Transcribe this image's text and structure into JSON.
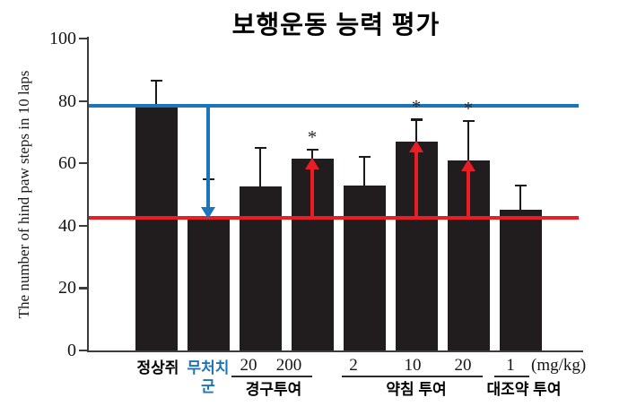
{
  "chart_data": {
    "type": "bar",
    "title": "보행운동 능력 평가",
    "ylabel": "The number of hind paw steps in 10 laps",
    "xlabel": "",
    "unit_label": "(mg/kg)",
    "ylim": [
      0,
      100
    ],
    "yticks": [
      0,
      20,
      40,
      60,
      80,
      100
    ],
    "grid": false,
    "legend": "none",
    "bar_color": "#211d1e",
    "axis_color": "#3c3c3c",
    "significance_marker": "*",
    "bars": [
      {
        "label": "정상쥐",
        "label_lines": [
          "정상쥐"
        ],
        "label_color": "#000000",
        "value": 78,
        "error_top": 86.5,
        "significant": false
      },
      {
        "label": "무처치 군",
        "label_lines": [
          "무처치",
          "군"
        ],
        "label_color": "#1b75bc",
        "value": 42.5,
        "error_top": 55,
        "significant": false
      },
      {
        "label": "20",
        "label_lines": [
          "20"
        ],
        "label_color": "#151515",
        "value": 52.5,
        "error_top": 65,
        "significant": false
      },
      {
        "label": "200",
        "label_lines": [
          "200"
        ],
        "label_color": "#151515",
        "value": 61.5,
        "error_top": 64.5,
        "significant": true
      },
      {
        "label": "2",
        "label_lines": [
          "2"
        ],
        "label_color": "#151515",
        "value": 53,
        "error_top": 62,
        "significant": false
      },
      {
        "label": "10",
        "label_lines": [
          "10"
        ],
        "label_color": "#151515",
        "value": 67,
        "error_top": 74,
        "significant": true
      },
      {
        "label": "20",
        "label_lines": [
          "20"
        ],
        "label_color": "#151515",
        "value": 61,
        "error_top": 73.5,
        "significant": true
      },
      {
        "label": "1",
        "label_lines": [
          "1"
        ],
        "label_color": "#151515",
        "value": 45,
        "error_top": 53,
        "significant": false
      }
    ],
    "groups": [
      {
        "label": "경구투여",
        "bar_indices": [
          2,
          3
        ]
      },
      {
        "label": "약침 투여",
        "bar_indices": [
          4,
          5,
          6
        ]
      },
      {
        "label": "대조약 투여",
        "bar_indices": [
          7
        ]
      }
    ],
    "reference_lines": [
      {
        "name": "normal-level-line",
        "value": 78.5,
        "color": "#1b75bc"
      },
      {
        "name": "untreated-level-line",
        "value": 42.5,
        "color": "#ec1c24"
      }
    ],
    "arrows": [
      {
        "bar_index": 1,
        "direction": "down",
        "from": 78.5,
        "to": 42.5,
        "color": "#1b75bc"
      },
      {
        "bar_index": 3,
        "direction": "up",
        "from": 42.5,
        "to": 61.5,
        "color": "#ec1c24"
      },
      {
        "bar_index": 5,
        "direction": "up",
        "from": 42.5,
        "to": 67,
        "color": "#ec1c24"
      },
      {
        "bar_index": 6,
        "direction": "up",
        "from": 42.5,
        "to": 61,
        "color": "#ec1c24"
      }
    ]
  }
}
